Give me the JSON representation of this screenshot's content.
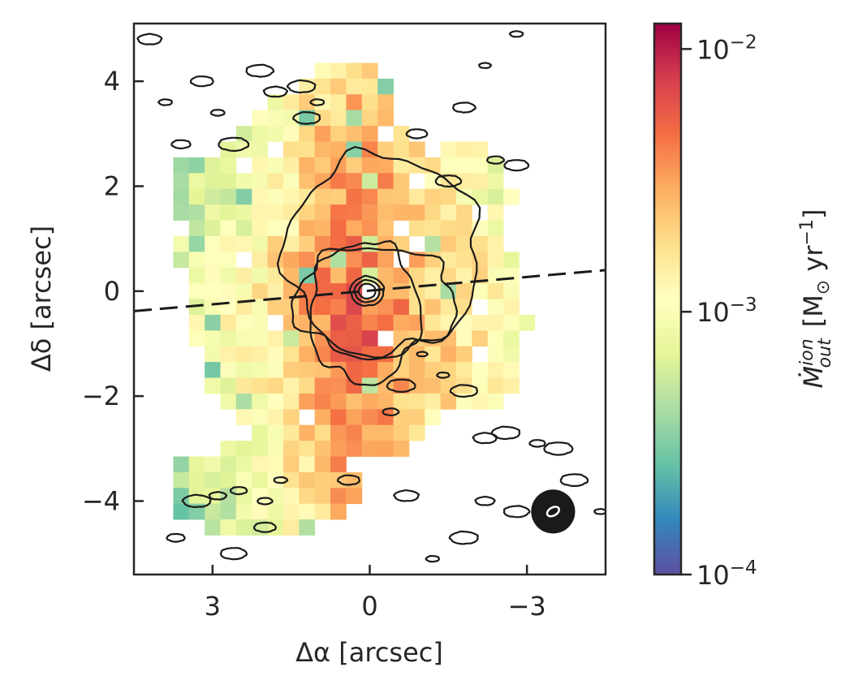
{
  "chart_data": {
    "type": "heatmap",
    "xlabel": "Δα [arcsec]",
    "ylabel": "Δδ [arcsec]",
    "xlim": [
      4.5,
      -4.5
    ],
    "ylim": [
      -5.4,
      5.1
    ],
    "xticks": [
      3,
      0,
      -3
    ],
    "xtick_labels": [
      "3",
      "0",
      "−3"
    ],
    "yticks": [
      4,
      2,
      0,
      -2,
      -4
    ],
    "ytick_labels": [
      "4",
      "2",
      "0",
      "−2",
      "−4"
    ],
    "colorbar": {
      "label_main": "Ṁ",
      "label_sup": "ion",
      "label_sub": "out",
      "label_unit": "[M",
      "label_unit_sub": "⊙",
      "label_unit_rest": " yr",
      "label_unit_exp": "−1",
      "label_close": "]",
      "scale": "log",
      "range": [
        0.0001,
        0.0125
      ],
      "colormap": "Spectral_r",
      "ticks": [
        {
          "value": 0.01,
          "base": "10",
          "exp": "−2"
        },
        {
          "value": 0.001,
          "base": "10",
          "exp": "−3"
        },
        {
          "value": 0.0001,
          "base": "10",
          "exp": "−4"
        }
      ]
    },
    "dashed_line": {
      "x": [
        4.5,
        -4.5
      ],
      "y": [
        -0.38,
        0.4
      ]
    },
    "beam": {
      "x": -3.5,
      "y": -4.2,
      "radius": 0.42
    },
    "colors": {
      "line": "#1a1a1a",
      "frame": "#262626",
      "background": "#ffffff"
    },
    "pixel_size_arcsec": 0.3,
    "grid": false
  }
}
